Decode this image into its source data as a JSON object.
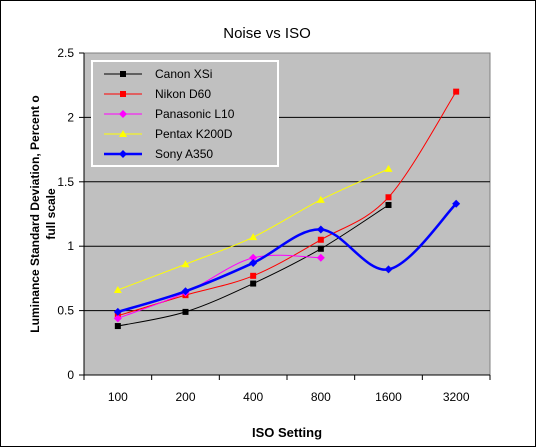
{
  "chart_data": {
    "type": "line",
    "title": "Noise vs ISO",
    "xlabel": "ISO Setting",
    "ylabel": "Luminance Standard Deviation, Percent o full scale",
    "ylabel_lines": [
      "Luminance Standard Deviation, Percent o",
      "full scale"
    ],
    "categories": [
      "100",
      "200",
      "400",
      "800",
      "1600",
      "3200"
    ],
    "ylim": [
      0,
      2.5
    ],
    "yticks": [
      "0",
      "0.5",
      "1",
      "1.5",
      "2",
      "2.5"
    ],
    "grid": "horizontal",
    "plot_background": "#c0c0c0",
    "legend_position": "top-left",
    "series": [
      {
        "name": "Canon XSi",
        "color": "#000000",
        "marker": "square",
        "values": [
          0.38,
          0.49,
          0.71,
          0.98,
          1.32,
          null
        ]
      },
      {
        "name": "Nikon D60",
        "color": "#ff0000",
        "marker": "square",
        "values": [
          0.46,
          0.62,
          0.77,
          1.05,
          1.38,
          2.2
        ]
      },
      {
        "name": "Panasonic L10",
        "color": "#ff00ff",
        "marker": "diamond",
        "values": [
          0.44,
          0.64,
          0.91,
          0.91,
          null,
          null
        ]
      },
      {
        "name": "Pentax K200D",
        "color": "#ffff00",
        "marker": "triangle",
        "values": [
          0.66,
          0.86,
          1.07,
          1.36,
          1.6,
          null
        ]
      },
      {
        "name": "Sony A350",
        "color": "#0000ff",
        "marker": "diamond",
        "values": [
          0.49,
          0.65,
          0.87,
          1.13,
          0.82,
          1.33
        ]
      }
    ]
  }
}
